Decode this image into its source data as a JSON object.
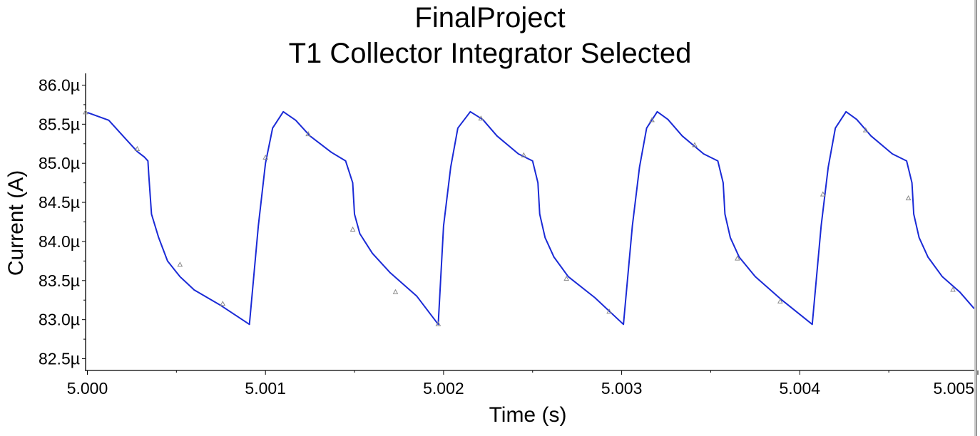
{
  "chart_data": {
    "type": "line",
    "title": "FinalProject",
    "subtitle": "T1 Collector Integrator Selected",
    "xlabel": "Time (s)",
    "ylabel": "Current (A)",
    "xlim": [
      4.99999,
      5.00498
    ],
    "ylim": [
      82.35,
      86.15
    ],
    "x_ticks": [
      5.0,
      5.001,
      5.002,
      5.003,
      5.004,
      5.005
    ],
    "x_tick_labels": [
      "5.000",
      "5.001",
      "5.002",
      "5.003",
      "5.004",
      "5.005"
    ],
    "y_ticks": [
      82.5,
      83.0,
      83.5,
      84.0,
      84.5,
      85.0,
      85.5,
      86.0
    ],
    "y_tick_labels": [
      "82.5µ",
      "83.0µ",
      "83.5µ",
      "84.0µ",
      "84.5µ",
      "85.0µ",
      "85.5µ",
      "86.0µ"
    ],
    "y_unit": "µA",
    "grid": false,
    "legend": "none",
    "line_color": "#1a2ad6",
    "marker_color": "#8a8a8a",
    "series": [
      {
        "x": [
          5.0,
          5.00012,
          5.0002,
          5.00028,
          5.00032,
          5.00034,
          5.000345,
          5.00036,
          5.0004,
          5.00045,
          5.00052,
          5.0006,
          5.00075,
          5.00091,
          5.00096,
          5.001,
          5.00104,
          5.0011,
          5.00117,
          5.00125,
          5.00137,
          5.00145,
          5.00149,
          5.0015,
          5.00153,
          5.0016,
          5.0017,
          5.00185,
          5.00197,
          5.002,
          5.00204,
          5.00208,
          5.00215,
          5.00222,
          5.0023,
          5.00242,
          5.0025,
          5.00253,
          5.00254,
          5.00257,
          5.00262,
          5.0027,
          5.00285,
          5.00301,
          5.00306,
          5.0031,
          5.00314,
          5.0032,
          5.00326,
          5.00334,
          5.00346,
          5.00354,
          5.00357,
          5.00358,
          5.00361,
          5.00366,
          5.00375,
          5.0039,
          5.00407,
          5.00412,
          5.00416,
          5.0042,
          5.00426,
          5.00432,
          5.0044,
          5.00452,
          5.0046,
          5.00463,
          5.00464,
          5.00467,
          5.00472,
          5.0048,
          5.0049,
          5.00498
        ],
        "y": [
          85.65,
          85.55,
          85.35,
          85.15,
          85.08,
          85.03,
          84.85,
          84.35,
          84.05,
          83.75,
          83.55,
          83.38,
          83.18,
          82.94,
          84.2,
          85.0,
          85.45,
          85.66,
          85.55,
          85.35,
          85.14,
          85.03,
          84.75,
          84.35,
          84.1,
          83.85,
          83.6,
          83.3,
          82.94,
          84.2,
          84.95,
          85.45,
          85.66,
          85.56,
          85.35,
          85.12,
          85.03,
          84.75,
          84.35,
          84.05,
          83.8,
          83.55,
          83.28,
          82.94,
          84.2,
          84.95,
          85.45,
          85.66,
          85.56,
          85.35,
          85.12,
          85.03,
          84.75,
          84.35,
          84.05,
          83.8,
          83.55,
          83.25,
          82.94,
          84.2,
          84.95,
          85.45,
          85.66,
          85.56,
          85.35,
          85.12,
          85.03,
          84.75,
          84.35,
          84.05,
          83.8,
          83.55,
          83.35,
          83.14
        ]
      }
    ],
    "markers": {
      "x": [
        4.99999,
        5.00028,
        5.00052,
        5.00076,
        5.001,
        5.00124,
        5.00149,
        5.00173,
        5.00197,
        5.00221,
        5.00245,
        5.00269,
        5.00293,
        5.00317,
        5.00341,
        5.00365,
        5.00389,
        5.00413,
        5.00437,
        5.00461,
        5.00486
      ],
      "y": [
        85.65,
        85.18,
        83.7,
        83.2,
        85.07,
        85.37,
        84.15,
        83.35,
        82.94,
        85.57,
        85.1,
        83.52,
        83.1,
        85.55,
        85.23,
        83.78,
        83.23,
        84.6,
        85.42,
        84.55,
        83.38
      ]
    }
  }
}
